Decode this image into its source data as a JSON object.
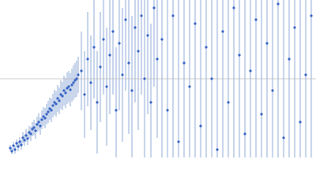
{
  "chart_data": {
    "type": "scatter",
    "x": [
      13,
      15,
      17,
      19,
      21,
      23,
      25,
      27,
      29,
      31,
      33,
      35,
      37,
      39,
      41,
      43,
      45,
      47,
      49,
      51,
      53,
      55,
      57,
      59,
      61,
      63,
      65,
      67,
      69,
      71,
      73,
      75,
      77,
      79,
      81,
      83,
      85,
      87,
      89,
      91,
      93,
      95,
      97,
      99,
      103,
      107,
      111,
      115,
      119,
      123,
      127,
      131,
      135,
      139,
      143,
      147,
      151,
      155,
      159,
      163,
      167,
      171,
      175,
      179,
      183,
      187,
      191,
      195,
      199,
      205,
      212,
      219,
      226,
      233,
      240,
      247,
      254,
      261,
      268,
      275,
      282,
      289,
      296,
      303,
      310,
      317,
      324,
      331,
      338,
      345,
      352,
      359,
      366,
      373,
      380,
      387,
      394
    ],
    "y": [
      12,
      8,
      15,
      10,
      18,
      14,
      20,
      16,
      25,
      22,
      28,
      24,
      32,
      30,
      36,
      38,
      34,
      42,
      45,
      40,
      48,
      52,
      50,
      55,
      58,
      62,
      60,
      66,
      70,
      68,
      75,
      72,
      80,
      78,
      85,
      82,
      88,
      90,
      86,
      92,
      95,
      98,
      100,
      105,
      110,
      80,
      125,
      95,
      140,
      70,
      115,
      150,
      90,
      130,
      160,
      60,
      145,
      105,
      175,
      120,
      85,
      165,
      135,
      180,
      100,
      155,
      70,
      190,
      125,
      150,
      60,
      180,
      20,
      120,
      90,
      170,
      40,
      140,
      100,
      10,
      160,
      70,
      190,
      130,
      30,
      110,
      175,
      55,
      145,
      85,
      195,
      25,
      125,
      165,
      45,
      105,
      180
    ],
    "errors": [
      4,
      4,
      5,
      5,
      5,
      6,
      6,
      6,
      7,
      7,
      8,
      8,
      8,
      9,
      9,
      10,
      10,
      10,
      11,
      11,
      12,
      12,
      13,
      13,
      14,
      14,
      15,
      15,
      16,
      16,
      17,
      17,
      18,
      18,
      19,
      19,
      20,
      20,
      21,
      21,
      22,
      22,
      23,
      23,
      50,
      55,
      60,
      60,
      65,
      65,
      70,
      70,
      75,
      75,
      80,
      80,
      85,
      85,
      90,
      90,
      95,
      95,
      100,
      100,
      100,
      100,
      100,
      100,
      100,
      200,
      200,
      200,
      200,
      200,
      200,
      200,
      200,
      200,
      200,
      200,
      200,
      200,
      200,
      200,
      200,
      200,
      200,
      200,
      200,
      200,
      200,
      200,
      200,
      200,
      200,
      200,
      200
    ],
    "color": "#3a66c4",
    "error_color": "#c9d6ec",
    "reference_color": "#bbbbbb",
    "xlim": [
      0,
      400
    ],
    "ylim": [
      0,
      200
    ],
    "reference_line": 100
  }
}
